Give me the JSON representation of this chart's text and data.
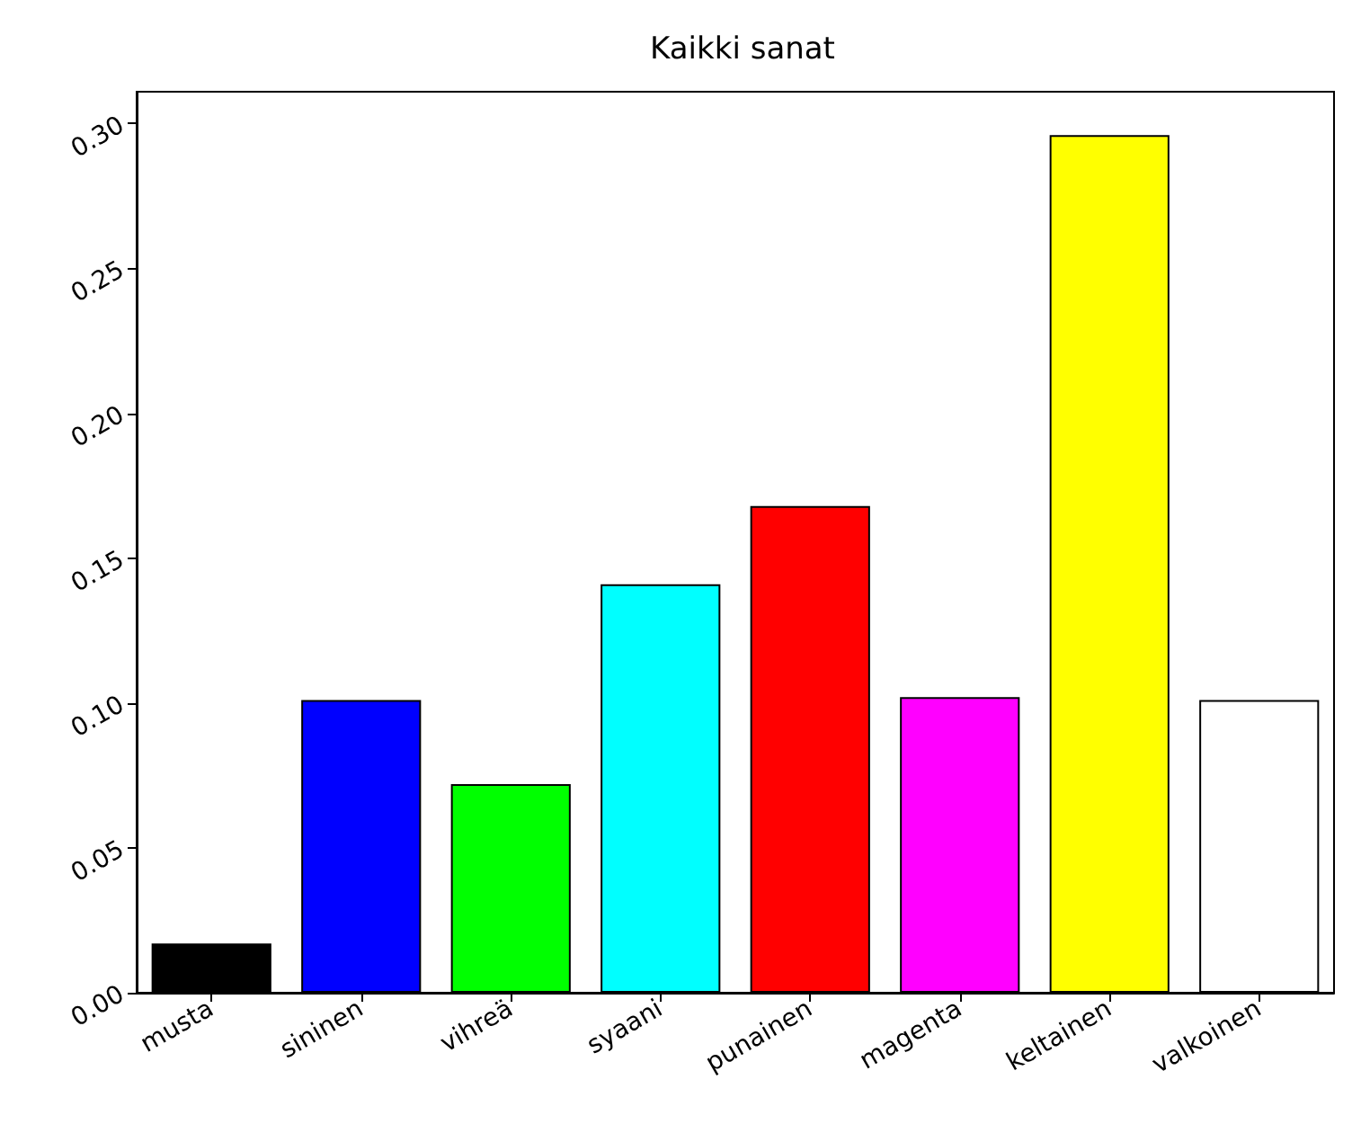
{
  "chart_data": {
    "type": "bar",
    "title": "Kaikki sanat",
    "categories": [
      "musta",
      "sininen",
      "vihreä",
      "syaani",
      "punainen",
      "magenta",
      "keltainen",
      "valkoinen"
    ],
    "values": [
      0.017,
      0.101,
      0.072,
      0.141,
      0.168,
      0.102,
      0.296,
      0.101
    ],
    "colors": [
      "#000000",
      "#0000ff",
      "#00ff00",
      "#00ffff",
      "#ff0000",
      "#ff00ff",
      "#ffff00",
      "#ffffff"
    ],
    "ylim": [
      0,
      0.311
    ],
    "yticks": [
      {
        "value": 0,
        "label": "0.00"
      },
      {
        "value": 0.05,
        "label": "0.05"
      },
      {
        "value": 0.1,
        "label": "0.10"
      },
      {
        "value": 0.15,
        "label": "0.15"
      },
      {
        "value": 0.2,
        "label": "0.20"
      },
      {
        "value": 0.25,
        "label": "0.25"
      },
      {
        "value": 0.3,
        "label": "0.30"
      }
    ],
    "grid": false
  }
}
